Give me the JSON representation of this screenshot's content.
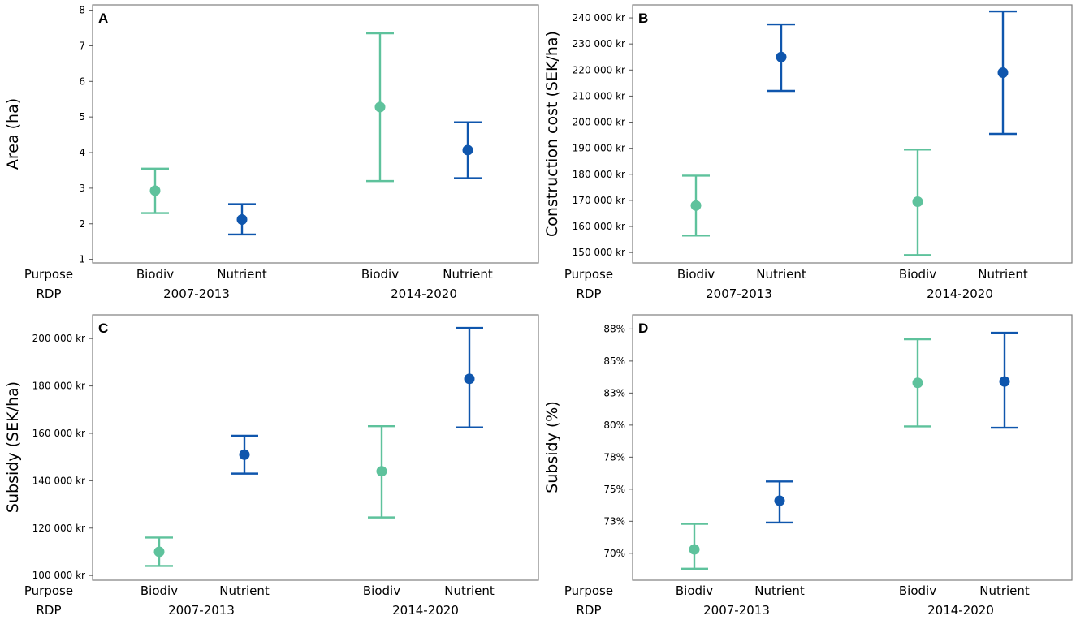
{
  "colors": {
    "biodiv": "#5ec29c",
    "nutrient": "#0f56ad",
    "frame": "#7f7f7f"
  },
  "row_labels": {
    "purpose": "Purpose",
    "rdp": "RDP"
  },
  "chart_data": [
    {
      "type": "errorbar",
      "panel": "A",
      "ylabel": "Area (ha)",
      "ylim": [
        0.9,
        8.15
      ],
      "ytick_values": [
        1,
        2,
        3,
        4,
        5,
        6,
        7,
        8
      ],
      "ytick_labels": [
        "1",
        "2",
        "3",
        "4",
        "5",
        "6",
        "7",
        "8"
      ],
      "groups": [
        "2007-2013",
        "2014-2020"
      ],
      "categories": [
        "Biodiv",
        "Nutrient",
        "Biodiv",
        "Nutrient"
      ],
      "points": [
        {
          "purpose": "Biodiv",
          "rdp": "2007-2013",
          "mean": 2.93,
          "low": 2.3,
          "high": 3.55
        },
        {
          "purpose": "Nutrient",
          "rdp": "2007-2013",
          "mean": 2.12,
          "low": 1.7,
          "high": 2.55
        },
        {
          "purpose": "Biodiv",
          "rdp": "2014-2020",
          "mean": 5.28,
          "low": 3.2,
          "high": 7.35
        },
        {
          "purpose": "Nutrient",
          "rdp": "2014-2020",
          "mean": 4.07,
          "low": 3.28,
          "high": 4.85
        }
      ]
    },
    {
      "type": "errorbar",
      "panel": "B",
      "ylabel": "Construction cost (SEK/ha)",
      "ylim": [
        146000,
        245000
      ],
      "ytick_values": [
        150000,
        160000,
        170000,
        180000,
        190000,
        200000,
        210000,
        220000,
        230000,
        240000
      ],
      "ytick_labels": [
        "150 000 kr",
        "160 000 kr",
        "170 000 kr",
        "180 000 kr",
        "190 000 kr",
        "200 000 kr",
        "210 000 kr",
        "220 000 kr",
        "230 000 kr",
        "240 000 kr"
      ],
      "groups": [
        "2007-2013",
        "2014-2020"
      ],
      "categories": [
        "Biodiv",
        "Nutrient",
        "Biodiv",
        "Nutrient"
      ],
      "points": [
        {
          "purpose": "Biodiv",
          "rdp": "2007-2013",
          "mean": 168000,
          "low": 156500,
          "high": 179500
        },
        {
          "purpose": "Nutrient",
          "rdp": "2007-2013",
          "mean": 225000,
          "low": 212000,
          "high": 237500
        },
        {
          "purpose": "Biodiv",
          "rdp": "2014-2020",
          "mean": 169500,
          "low": 149000,
          "high": 189500
        },
        {
          "purpose": "Nutrient",
          "rdp": "2014-2020",
          "mean": 219000,
          "low": 195500,
          "high": 242500
        }
      ]
    },
    {
      "type": "errorbar",
      "panel": "C",
      "ylabel": "Subsidy (SEK/ha)",
      "ylim": [
        98000,
        210000
      ],
      "ytick_values": [
        100000,
        120000,
        140000,
        160000,
        180000,
        200000
      ],
      "ytick_labels": [
        "100 000 kr",
        "120 000 kr",
        "140 000 kr",
        "160 000 kr",
        "180 000 kr",
        "200 000 kr"
      ],
      "groups": [
        "2007-2013",
        "2014-2020"
      ],
      "categories": [
        "Biodiv",
        "Nutrient",
        "Biodiv",
        "Nutrient"
      ],
      "points": [
        {
          "purpose": "Biodiv",
          "rdp": "2007-2013",
          "mean": 110000,
          "low": 104000,
          "high": 116000
        },
        {
          "purpose": "Nutrient",
          "rdp": "2007-2013",
          "mean": 151000,
          "low": 143000,
          "high": 159000
        },
        {
          "purpose": "Biodiv",
          "rdp": "2014-2020",
          "mean": 144000,
          "low": 124500,
          "high": 163000
        },
        {
          "purpose": "Nutrient",
          "rdp": "2014-2020",
          "mean": 183000,
          "low": 162500,
          "high": 204500
        }
      ]
    },
    {
      "type": "errorbar",
      "panel": "D",
      "ylabel": "Subsidy (%)",
      "ylim": [
        67.9,
        88.6
      ],
      "ytick_values": [
        70,
        72.5,
        75,
        77.5,
        80,
        82.5,
        85,
        87.5
      ],
      "ytick_labels": [
        "70%",
        "73%",
        "75%",
        "78%",
        "80%",
        "83%",
        "85%",
        "88%"
      ],
      "groups": [
        "2007-2013",
        "2014-2020"
      ],
      "categories": [
        "Biodiv",
        "Nutrient",
        "Biodiv",
        "Nutrient"
      ],
      "points": [
        {
          "purpose": "Biodiv",
          "rdp": "2007-2013",
          "mean": 70.3,
          "low": 68.8,
          "high": 72.3
        },
        {
          "purpose": "Nutrient",
          "rdp": "2007-2013",
          "mean": 74.1,
          "low": 72.4,
          "high": 75.6
        },
        {
          "purpose": "Biodiv",
          "rdp": "2014-2020",
          "mean": 83.3,
          "low": 79.9,
          "high": 86.7
        },
        {
          "purpose": "Nutrient",
          "rdp": "2014-2020",
          "mean": 83.4,
          "low": 79.8,
          "high": 87.2
        }
      ]
    }
  ]
}
